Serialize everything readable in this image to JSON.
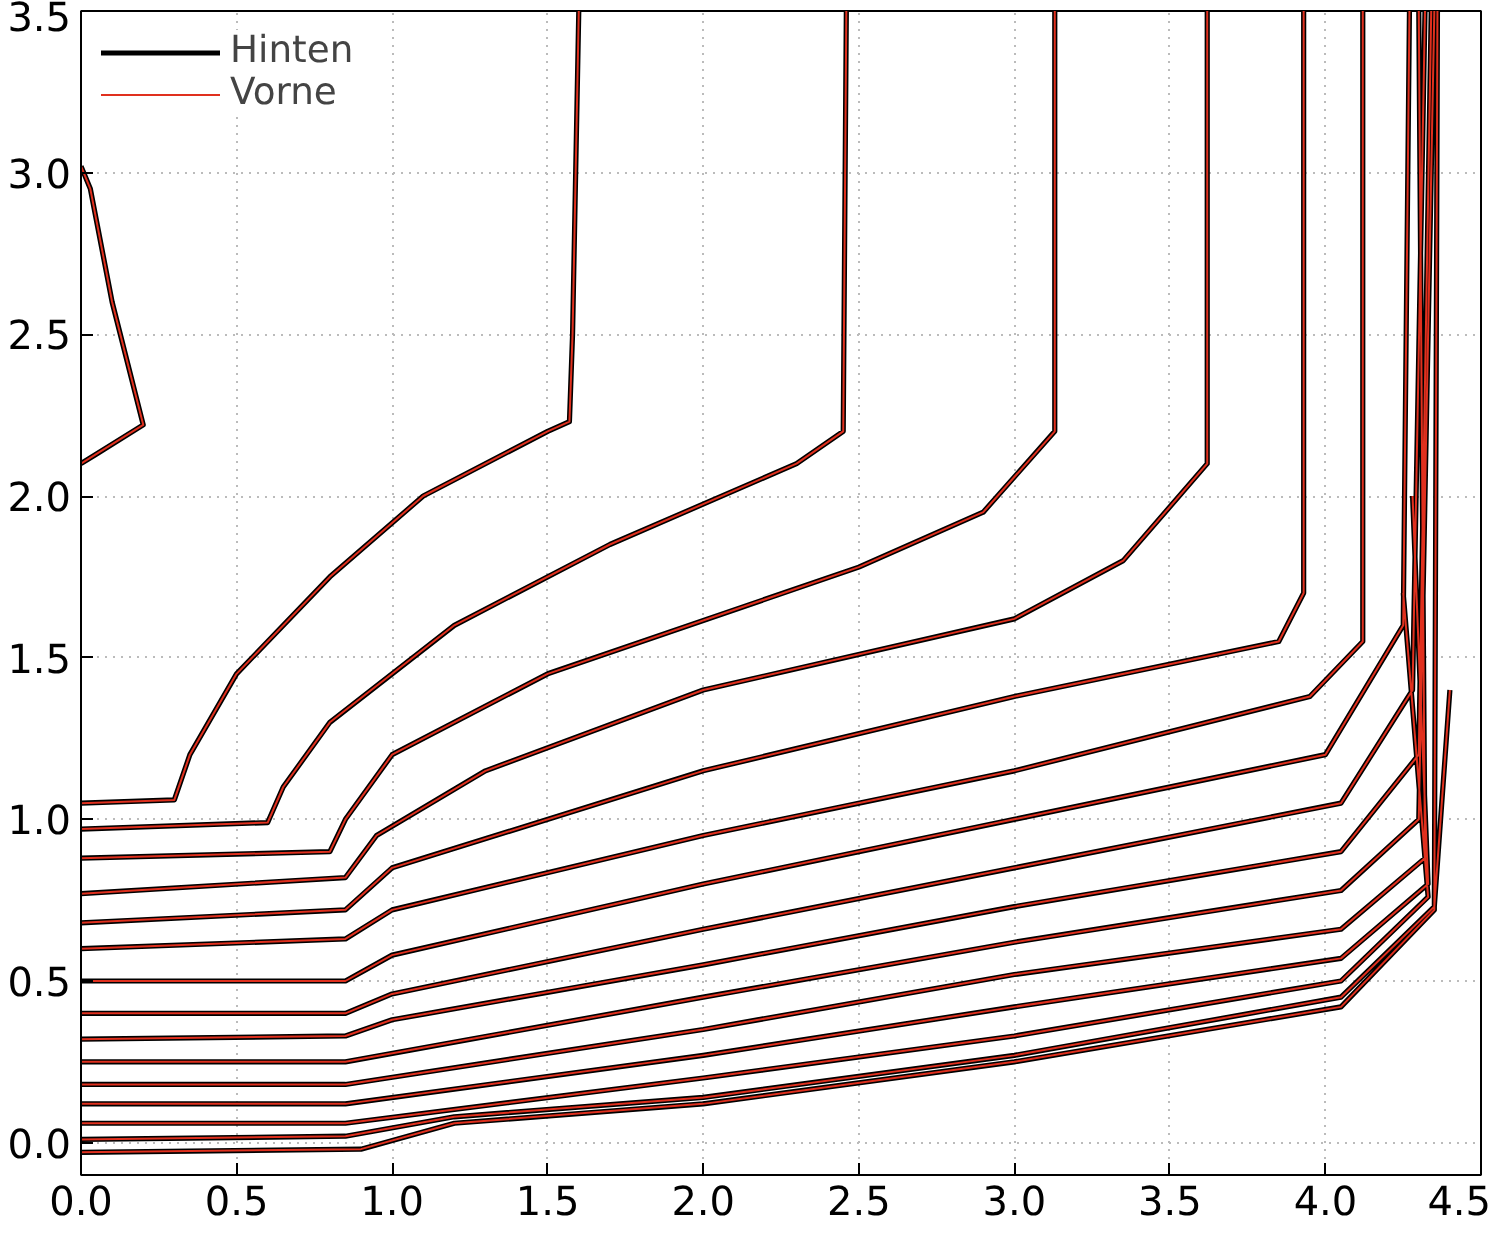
{
  "chart_data": {
    "type": "line",
    "xlim": [
      0,
      4.5
    ],
    "ylim": [
      -0.1,
      3.5
    ],
    "xticks": [
      {
        "value": 0,
        "label": "0.0"
      },
      0.5,
      {
        "value": 1,
        "label": "1.0"
      },
      1.5,
      {
        "value": 2,
        "label": "2.0"
      },
      2.5,
      {
        "value": 3,
        "label": "3.0"
      },
      3.5,
      {
        "value": 4,
        "label": "4.0"
      },
      4.5
    ],
    "yticks": [
      {
        "value": 0,
        "label": "0.0"
      },
      0.5,
      {
        "value": 1,
        "label": "1.0"
      },
      1.5,
      {
        "value": 2,
        "label": "2.0"
      },
      2.5,
      {
        "value": 3,
        "label": "3.0"
      },
      3.5
    ],
    "grid": true,
    "legend": "top left",
    "line_style": "solid",
    "marker": "none",
    "series": [
      {
        "name": "Hinten",
        "color": "#000000",
        "x": [
          0,
          0.05,
          0.2,
          0.1,
          0.03,
          0,
          null,
          0,
          0.3,
          0.35,
          0.5,
          0.8,
          1.1,
          1.5,
          1.57,
          1.58,
          1.6,
          null,
          0,
          0.6,
          0.65,
          0.8,
          1.2,
          1.7,
          2.3,
          2.45,
          2.46,
          null,
          0,
          0.8,
          0.85,
          1.0,
          1.5,
          2.5,
          2.9,
          3.13,
          3.13,
          null,
          0,
          0.85,
          0.95,
          1.3,
          2.0,
          3.0,
          3.35,
          3.62,
          3.62,
          null,
          0,
          0.85,
          1.0,
          2.0,
          3.0,
          3.85,
          3.93,
          3.93,
          null,
          0,
          0.85,
          1.0,
          2.0,
          3.0,
          3.95,
          4.12,
          4.12,
          null,
          0,
          0.85,
          1.0,
          2.0,
          3.0,
          4.0,
          4.25,
          4.27,
          null,
          0,
          0.85,
          1.0,
          2.0,
          3.0,
          4.05,
          4.28,
          4.32,
          null,
          0,
          0.85,
          1.0,
          2.0,
          3.0,
          4.05,
          4.3,
          4.34,
          null,
          0,
          0.85,
          2.0,
          3.0,
          4.05,
          4.3,
          4.35,
          null,
          0,
          0.85,
          2.0,
          3.0,
          4.05,
          4.32,
          4.3,
          null,
          0,
          0.85,
          2.0,
          3.0,
          4.05,
          4.33,
          4.28,
          null,
          0,
          0.85,
          2.0,
          3.0,
          4.05,
          4.33,
          4.25,
          null,
          0,
          0.85,
          1.2,
          2.0,
          3.0,
          4.05,
          4.35,
          4.4,
          null,
          0,
          0.9,
          1.2,
          2.0,
          3.0,
          4.05,
          4.35,
          4.36
        ],
        "values": [
          2.1,
          2.13,
          2.22,
          2.6,
          2.95,
          3.02,
          null,
          1.05,
          1.06,
          1.2,
          1.45,
          1.75,
          2.0,
          2.2,
          2.23,
          2.5,
          3.5,
          null,
          0.97,
          0.99,
          1.1,
          1.3,
          1.6,
          1.85,
          2.1,
          2.2,
          3.5,
          null,
          0.88,
          0.9,
          1.0,
          1.2,
          1.45,
          1.78,
          1.95,
          2.2,
          3.5,
          null,
          0.77,
          0.82,
          0.95,
          1.15,
          1.4,
          1.62,
          1.8,
          2.1,
          3.5,
          null,
          0.68,
          0.72,
          0.85,
          1.15,
          1.38,
          1.55,
          1.7,
          3.5,
          null,
          0.6,
          0.63,
          0.72,
          0.95,
          1.15,
          1.38,
          1.55,
          3.5,
          null,
          0.5,
          0.5,
          0.58,
          0.8,
          1.0,
          1.2,
          1.6,
          3.5,
          null,
          0.4,
          0.4,
          0.46,
          0.66,
          0.85,
          1.05,
          1.4,
          3.5,
          null,
          0.32,
          0.33,
          0.38,
          0.55,
          0.73,
          0.9,
          1.2,
          3.5,
          null,
          0.25,
          0.25,
          0.45,
          0.62,
          0.78,
          1.0,
          3.5,
          null,
          0.18,
          0.18,
          0.35,
          0.52,
          0.66,
          0.88,
          3.5,
          null,
          0.12,
          0.12,
          0.27,
          0.42,
          0.57,
          0.8,
          2.0,
          null,
          0.06,
          0.06,
          0.2,
          0.33,
          0.5,
          0.76,
          1.7,
          null,
          0.01,
          0.02,
          0.08,
          0.14,
          0.27,
          0.45,
          0.73,
          1.4,
          null,
          -0.03,
          -0.02,
          0.06,
          0.12,
          0.25,
          0.42,
          0.72,
          3.5
        ]
      },
      {
        "name": "Vorne",
        "color": "#e0301e",
        "x": [
          0,
          0.05,
          0.2,
          0.1,
          0.03,
          0,
          null,
          0,
          0.3,
          0.35,
          0.5,
          0.8,
          1.1,
          1.5,
          1.57,
          1.58,
          1.6,
          null,
          0,
          0.6,
          0.65,
          0.8,
          1.2,
          1.7,
          2.3,
          2.45,
          2.46,
          null,
          0,
          0.8,
          0.85,
          1.0,
          1.5,
          2.5,
          2.9,
          3.13,
          3.13,
          null,
          0,
          0.85,
          0.95,
          1.3,
          2.0,
          3.0,
          3.35,
          3.62,
          3.62,
          null,
          0,
          0.85,
          1.0,
          2.0,
          3.0,
          3.85,
          3.93,
          3.93,
          null,
          0,
          0.85,
          1.0,
          2.0,
          3.0,
          3.95,
          4.12,
          4.12,
          null,
          0,
          0.85,
          1.0,
          2.0,
          3.0,
          4.0,
          4.25,
          4.27,
          null,
          0,
          0.85,
          1.0,
          2.0,
          3.0,
          4.05,
          4.28,
          4.32,
          null,
          0,
          0.85,
          1.0,
          2.0,
          3.0,
          4.05,
          4.3,
          4.34,
          null,
          0,
          0.85,
          2.0,
          3.0,
          4.05,
          4.3,
          4.35,
          null,
          0,
          0.85,
          2.0,
          3.0,
          4.05,
          4.32,
          4.3,
          null,
          0,
          0.85,
          2.0,
          3.0,
          4.05,
          4.33,
          4.28,
          null,
          0,
          0.85,
          2.0,
          3.0,
          4.05,
          4.33,
          4.25,
          null,
          0,
          0.85,
          1.2,
          2.0,
          3.0,
          4.05,
          4.35,
          4.4,
          null,
          0,
          0.9,
          1.2,
          2.0,
          3.0,
          4.05,
          4.35,
          4.36
        ],
        "values": [
          2.1,
          2.13,
          2.22,
          2.6,
          2.95,
          3.02,
          null,
          1.05,
          1.06,
          1.2,
          1.45,
          1.75,
          2.0,
          2.2,
          2.23,
          2.5,
          3.5,
          null,
          0.97,
          0.99,
          1.1,
          1.3,
          1.6,
          1.85,
          2.1,
          2.2,
          3.5,
          null,
          0.88,
          0.9,
          1.0,
          1.2,
          1.45,
          1.78,
          1.95,
          2.2,
          3.5,
          null,
          0.77,
          0.82,
          0.95,
          1.15,
          1.4,
          1.62,
          1.8,
          2.1,
          3.5,
          null,
          0.68,
          0.72,
          0.85,
          1.15,
          1.38,
          1.55,
          1.7,
          3.5,
          null,
          0.6,
          0.63,
          0.72,
          0.95,
          1.15,
          1.38,
          1.55,
          3.5,
          null,
          0.5,
          0.5,
          0.58,
          0.8,
          1.0,
          1.2,
          1.6,
          3.5,
          null,
          0.4,
          0.4,
          0.46,
          0.66,
          0.85,
          1.05,
          1.4,
          3.5,
          null,
          0.32,
          0.33,
          0.38,
          0.55,
          0.73,
          0.9,
          1.2,
          3.5,
          null,
          0.25,
          0.25,
          0.45,
          0.62,
          0.78,
          1.0,
          3.5,
          null,
          0.18,
          0.18,
          0.35,
          0.52,
          0.66,
          0.88,
          3.5,
          null,
          0.12,
          0.12,
          0.27,
          0.42,
          0.57,
          0.8,
          2.0,
          null,
          0.06,
          0.06,
          0.2,
          0.33,
          0.5,
          0.76,
          1.7,
          null,
          0.01,
          0.02,
          0.08,
          0.14,
          0.27,
          0.45,
          0.73,
          1.4,
          null,
          -0.03,
          -0.02,
          0.06,
          0.12,
          0.25,
          0.42,
          0.72,
          3.5
        ]
      }
    ]
  }
}
